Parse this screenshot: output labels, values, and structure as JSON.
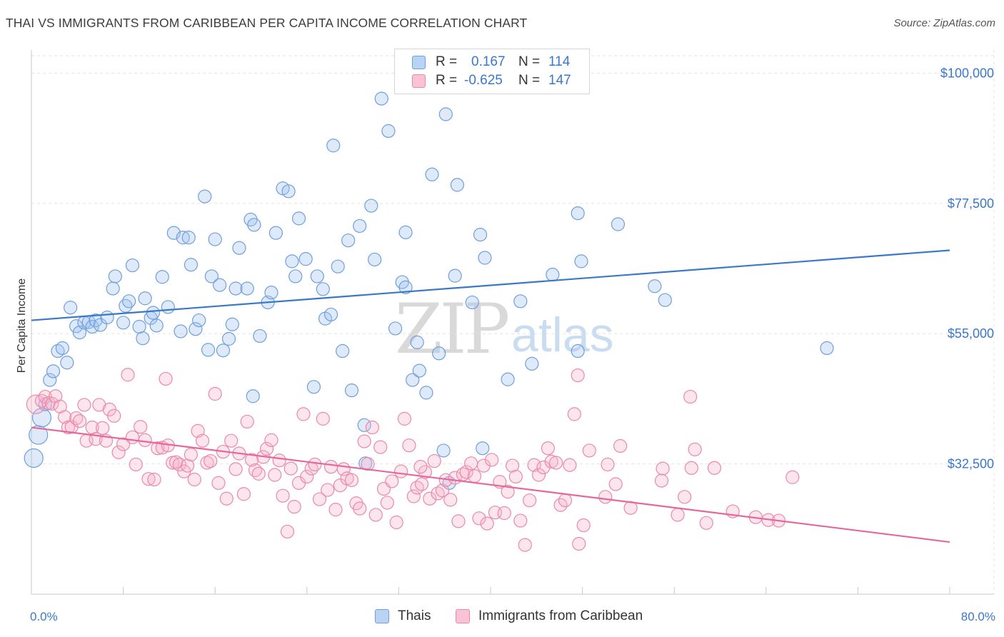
{
  "title": "THAI VS IMMIGRANTS FROM CARIBBEAN PER CAPITA INCOME CORRELATION CHART",
  "source": "Source: ZipAtlas.com",
  "watermark": {
    "zip": "ZIP",
    "atlas": "atlas"
  },
  "legend_top": [
    {
      "swatch_fill": "#b8d3f3",
      "swatch_stroke": "#6f9fdc",
      "r_label": "R =",
      "r_value": "0.167",
      "n_label": "N =",
      "n_value": "114"
    },
    {
      "swatch_fill": "#f9c3d5",
      "swatch_stroke": "#ea89aa",
      "r_label": "R =",
      "r_value": "-0.625",
      "n_label": "N =",
      "n_value": "147"
    }
  ],
  "legend_bottom": [
    {
      "label": "Thais",
      "swatch_fill": "#b8d3f3",
      "swatch_stroke": "#6f9fdc"
    },
    {
      "label": "Immigrants from Caribbean",
      "swatch_fill": "#f9c3d5",
      "swatch_stroke": "#ea89aa"
    }
  ],
  "chart_data": {
    "type": "scatter",
    "ylabel": "Per Capita Income",
    "xlim": [
      0,
      80
    ],
    "ylim": [
      10000,
      104000
    ],
    "x_tick_labels": [
      {
        "value": 0,
        "label": "0.0%"
      },
      {
        "value": 80,
        "label": "80.0%"
      }
    ],
    "y_ticks": [
      {
        "value": 32500,
        "label": "$32,500"
      },
      {
        "value": 55000,
        "label": "$55,000"
      },
      {
        "value": 77500,
        "label": "$77,500"
      },
      {
        "value": 100000,
        "label": "$100,000"
      }
    ],
    "x_minor_ticks": [
      0,
      8,
      16,
      24,
      32,
      40,
      48,
      56,
      64,
      72,
      80
    ],
    "grid": true,
    "series": [
      {
        "name": "Thais",
        "color": "#6f9fdc",
        "fill": "rgba(160,196,240,0.35)",
        "line_color": "#3a78c9",
        "trend": [
          [
            0,
            57300
          ],
          [
            80,
            69400
          ]
        ],
        "points": [
          [
            0.2,
            33500,
            "l"
          ],
          [
            0.6,
            37500,
            "l"
          ],
          [
            0.9,
            40500,
            "l"
          ],
          [
            1.2,
            42800
          ],
          [
            1.6,
            47000
          ],
          [
            1.9,
            48500
          ],
          [
            2.3,
            52000
          ],
          [
            2.7,
            52500
          ],
          [
            3.1,
            50000
          ],
          [
            3.4,
            59500
          ],
          [
            3.9,
            56300
          ],
          [
            4.2,
            55200
          ],
          [
            4.6,
            56900
          ],
          [
            5.0,
            57000
          ],
          [
            5.3,
            56200
          ],
          [
            5.6,
            57300
          ],
          [
            6.0,
            56500
          ],
          [
            6.6,
            57800
          ],
          [
            7.1,
            62800
          ],
          [
            7.3,
            64900
          ],
          [
            8.0,
            56900
          ],
          [
            8.2,
            59800
          ],
          [
            8.5,
            60600
          ],
          [
            8.8,
            66800
          ],
          [
            9.4,
            56200
          ],
          [
            9.7,
            54200
          ],
          [
            9.9,
            61100
          ],
          [
            10.4,
            57700
          ],
          [
            10.6,
            58600
          ],
          [
            10.9,
            56400
          ],
          [
            11.4,
            64800
          ],
          [
            11.9,
            59600
          ],
          [
            12.4,
            72400
          ],
          [
            13.0,
            55400
          ],
          [
            13.2,
            71600
          ],
          [
            13.7,
            71600
          ],
          [
            13.9,
            66900
          ],
          [
            14.3,
            55800
          ],
          [
            14.6,
            57300
          ],
          [
            15.1,
            78700
          ],
          [
            15.4,
            52200
          ],
          [
            15.7,
            64900
          ],
          [
            16.0,
            71300
          ],
          [
            16.4,
            63400
          ],
          [
            16.7,
            52100
          ],
          [
            17.2,
            54100
          ],
          [
            17.5,
            56600
          ],
          [
            17.8,
            62800
          ],
          [
            18.1,
            69800
          ],
          [
            18.8,
            62800
          ],
          [
            19.1,
            74700
          ],
          [
            19.4,
            73800
          ],
          [
            19.9,
            54600
          ],
          [
            19.3,
            44200
          ],
          [
            20.6,
            60400
          ],
          [
            20.9,
            62100
          ],
          [
            21.3,
            72400
          ],
          [
            21.9,
            80100
          ],
          [
            22.4,
            79600
          ],
          [
            22.7,
            67500
          ],
          [
            23.0,
            64900
          ],
          [
            23.3,
            74900
          ],
          [
            23.9,
            67900
          ],
          [
            24.6,
            45800
          ],
          [
            24.9,
            64900
          ],
          [
            25.6,
            57600
          ],
          [
            25.4,
            62700
          ],
          [
            26.1,
            58300
          ],
          [
            26.3,
            87500
          ],
          [
            26.7,
            66600
          ],
          [
            27.1,
            52000
          ],
          [
            27.6,
            71100
          ],
          [
            27.9,
            45200
          ],
          [
            28.6,
            73600
          ],
          [
            29.0,
            39200
          ],
          [
            29.1,
            32600
          ],
          [
            29.6,
            77100
          ],
          [
            29.9,
            67800
          ],
          [
            30.5,
            95600
          ],
          [
            31.1,
            90000
          ],
          [
            31.7,
            55900
          ],
          [
            32.3,
            63900
          ],
          [
            32.6,
            63000
          ],
          [
            32.6,
            72500
          ],
          [
            33.2,
            47000
          ],
          [
            33.6,
            53500
          ],
          [
            33.8,
            48600
          ],
          [
            34.4,
            44800
          ],
          [
            34.9,
            82500
          ],
          [
            35.5,
            51600
          ],
          [
            35.9,
            34800
          ],
          [
            36.1,
            92900
          ],
          [
            36.9,
            65000
          ],
          [
            36.4,
            29200
          ],
          [
            37.1,
            80700
          ],
          [
            38.4,
            60400
          ],
          [
            39.1,
            72100
          ],
          [
            39.5,
            68100
          ],
          [
            39.3,
            35200
          ],
          [
            41.5,
            47100
          ],
          [
            42.6,
            60600
          ],
          [
            43.6,
            49800
          ],
          [
            45.4,
            65200
          ],
          [
            47.6,
            75800
          ],
          [
            47.9,
            67500
          ],
          [
            47.6,
            52000
          ],
          [
            51.1,
            73900
          ],
          [
            54.3,
            63200
          ],
          [
            55.2,
            60800
          ],
          [
            69.3,
            52500
          ]
        ]
      },
      {
        "name": "Immigrants from Caribbean",
        "color": "#ea89aa",
        "fill": "rgba(246,180,203,0.35)",
        "line_color": "#e5689a",
        "trend": [
          [
            0,
            38800
          ],
          [
            80,
            19000
          ]
        ],
        "points": [
          [
            0.4,
            42800,
            "l"
          ],
          [
            0.9,
            43400
          ],
          [
            1.2,
            44100
          ],
          [
            1.5,
            43000
          ],
          [
            1.8,
            42900
          ],
          [
            2.1,
            44200
          ],
          [
            2.5,
            42400
          ],
          [
            2.9,
            40600
          ],
          [
            3.2,
            38800
          ],
          [
            3.5,
            38900
          ],
          [
            3.9,
            40400
          ],
          [
            4.2,
            39900
          ],
          [
            4.6,
            42700
          ],
          [
            4.8,
            36500
          ],
          [
            5.3,
            38800
          ],
          [
            5.6,
            36800
          ],
          [
            5.9,
            42700
          ],
          [
            6.2,
            38700
          ],
          [
            6.5,
            36500
          ],
          [
            6.8,
            41900
          ],
          [
            7.2,
            40800
          ],
          [
            7.6,
            34500
          ],
          [
            8.0,
            35900
          ],
          [
            8.4,
            47900
          ],
          [
            8.8,
            37100
          ],
          [
            9.1,
            32400
          ],
          [
            9.5,
            38900
          ],
          [
            9.9,
            36600
          ],
          [
            10.2,
            29900
          ],
          [
            10.7,
            29800
          ],
          [
            11.0,
            35200
          ],
          [
            11.4,
            35300
          ],
          [
            11.7,
            47200
          ],
          [
            11.9,
            35700
          ],
          [
            12.3,
            32700
          ],
          [
            12.6,
            32800
          ],
          [
            12.9,
            32400
          ],
          [
            13.3,
            31200
          ],
          [
            13.6,
            32200
          ],
          [
            13.9,
            34100
          ],
          [
            14.2,
            29800
          ],
          [
            14.5,
            38200
          ],
          [
            14.9,
            36500
          ],
          [
            15.3,
            32700
          ],
          [
            15.6,
            33000
          ],
          [
            16.0,
            44600
          ],
          [
            16.3,
            29200
          ],
          [
            16.7,
            34600
          ],
          [
            17.0,
            26500
          ],
          [
            17.4,
            36500
          ],
          [
            17.8,
            31600
          ],
          [
            18.1,
            34300
          ],
          [
            18.5,
            27300
          ],
          [
            18.8,
            39800
          ],
          [
            19.2,
            33200
          ],
          [
            19.5,
            31400
          ],
          [
            19.8,
            30800
          ],
          [
            20.2,
            33700
          ],
          [
            20.5,
            35100
          ],
          [
            20.9,
            36600
          ],
          [
            21.2,
            30600
          ],
          [
            21.6,
            33100
          ],
          [
            21.9,
            27000
          ],
          [
            22.3,
            20800
          ],
          [
            22.6,
            31700
          ],
          [
            22.9,
            25100
          ],
          [
            23.3,
            29200
          ],
          [
            23.7,
            41100
          ],
          [
            24.0,
            30300
          ],
          [
            24.4,
            31700
          ],
          [
            24.7,
            32400
          ],
          [
            25.1,
            26400
          ],
          [
            25.4,
            40300
          ],
          [
            25.8,
            28000
          ],
          [
            26.1,
            32000
          ],
          [
            26.5,
            24600
          ],
          [
            26.9,
            28800
          ],
          [
            27.2,
            31600
          ],
          [
            27.5,
            30000
          ],
          [
            27.9,
            29700
          ],
          [
            28.3,
            25700
          ],
          [
            28.6,
            24800
          ],
          [
            29.0,
            36400
          ],
          [
            29.3,
            32500
          ],
          [
            29.7,
            38800
          ],
          [
            30.0,
            23700
          ],
          [
            30.4,
            35400
          ],
          [
            30.7,
            28200
          ],
          [
            31.0,
            25800
          ],
          [
            31.4,
            29500
          ],
          [
            31.8,
            22400
          ],
          [
            32.2,
            31200
          ],
          [
            32.5,
            40300
          ],
          [
            32.9,
            35700
          ],
          [
            33.3,
            26900
          ],
          [
            33.6,
            28400
          ],
          [
            34.0,
            29000
          ],
          [
            34.3,
            31100
          ],
          [
            34.7,
            26500
          ],
          [
            35.1,
            33000
          ],
          [
            35.4,
            27400
          ],
          [
            35.8,
            27900
          ],
          [
            36.1,
            29700
          ],
          [
            36.5,
            26300
          ],
          [
            36.9,
            30100
          ],
          [
            37.2,
            22600
          ],
          [
            37.6,
            30700
          ],
          [
            37.9,
            31100
          ],
          [
            38.3,
            32600
          ],
          [
            38.6,
            30400
          ],
          [
            39.0,
            23100
          ],
          [
            39.4,
            32200
          ],
          [
            39.7,
            22200
          ],
          [
            40.1,
            33200
          ],
          [
            40.4,
            24100
          ],
          [
            40.8,
            29400
          ],
          [
            41.2,
            24000
          ],
          [
            41.5,
            27700
          ],
          [
            41.9,
            32200
          ],
          [
            42.2,
            30300
          ],
          [
            42.6,
            22700
          ],
          [
            43.0,
            18500
          ],
          [
            43.4,
            26200
          ],
          [
            43.8,
            32300
          ],
          [
            44.2,
            30600
          ],
          [
            44.6,
            31900
          ],
          [
            45.0,
            35200
          ],
          [
            45.3,
            32900
          ],
          [
            45.7,
            32700
          ],
          [
            46.1,
            25400
          ],
          [
            46.5,
            26200
          ],
          [
            46.9,
            32300
          ],
          [
            47.3,
            41100
          ],
          [
            47.7,
            18700
          ],
          [
            48.1,
            21900
          ],
          [
            48.6,
            34800
          ],
          [
            50.0,
            26800
          ],
          [
            50.2,
            32400
          ],
          [
            50.9,
            29000
          ],
          [
            51.3,
            35600
          ],
          [
            52.2,
            24900
          ],
          [
            55.0,
            31700
          ],
          [
            56.3,
            23700
          ],
          [
            56.9,
            26800
          ],
          [
            57.5,
            31800
          ],
          [
            58.8,
            22300
          ],
          [
            59.5,
            31800
          ],
          [
            61.1,
            24300
          ],
          [
            63.1,
            23300
          ],
          [
            64.2,
            22800
          ],
          [
            65.1,
            22700
          ],
          [
            66.3,
            30200
          ],
          [
            47.6,
            47800
          ],
          [
            57.4,
            44100
          ],
          [
            57.8,
            35000
          ],
          [
            54.9,
            29600
          ],
          [
            33.9,
            32000
          ]
        ]
      }
    ]
  }
}
